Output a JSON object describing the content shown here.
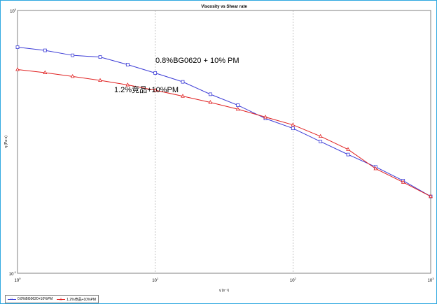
{
  "chart_data": {
    "type": "line",
    "title": "Viscosity vs Shear rate",
    "xlabel": "γ̇ (s⁻¹)",
    "ylabel": "η (Pa·s)",
    "x_scale": "log",
    "y_scale": "log",
    "xlim": [
      1,
      1000
    ],
    "ylim": [
      0.1,
      1
    ],
    "x_ticks": [
      {
        "base": "10",
        "exp": "0"
      },
      {
        "base": "10",
        "exp": "1"
      },
      {
        "base": "10",
        "exp": "2"
      },
      {
        "base": "10",
        "exp": "3"
      }
    ],
    "y_ticks": [
      {
        "base": "10",
        "exp": "-1"
      },
      {
        "base": "10",
        "exp": "0"
      }
    ],
    "grid": "vertical dashed lines at decades",
    "x": [
      1,
      1.585,
      2.512,
      3.981,
      6.31,
      10,
      15.85,
      25.12,
      39.81,
      63.1,
      100,
      158.5,
      251.2,
      398.1,
      631,
      1000
    ],
    "series": [
      {
        "name": "0.8%BG0620+10%PM",
        "color": "#3b3bd6",
        "marker": "square",
        "values": [
          0.725,
          0.705,
          0.675,
          0.665,
          0.622,
          0.578,
          0.535,
          0.48,
          0.436,
          0.388,
          0.356,
          0.317,
          0.283,
          0.254,
          0.225,
          0.196
        ]
      },
      {
        "name": "1.2%竞品+10%PM",
        "color": "#e02020",
        "marker": "triangle",
        "values": [
          0.596,
          0.58,
          0.561,
          0.542,
          0.521,
          0.497,
          0.472,
          0.447,
          0.421,
          0.393,
          0.367,
          0.332,
          0.296,
          0.25,
          0.222,
          0.196
        ]
      }
    ],
    "annotations": [
      {
        "text": "0.8%BG0620 + 10% PM"
      },
      {
        "text": "1.2%竞品+10%PM"
      }
    ],
    "legend": {
      "placement": "bottom-left",
      "entries": [
        "0.8%BG0620+10%PM",
        "1.2%竞品+10%PM"
      ]
    }
  }
}
